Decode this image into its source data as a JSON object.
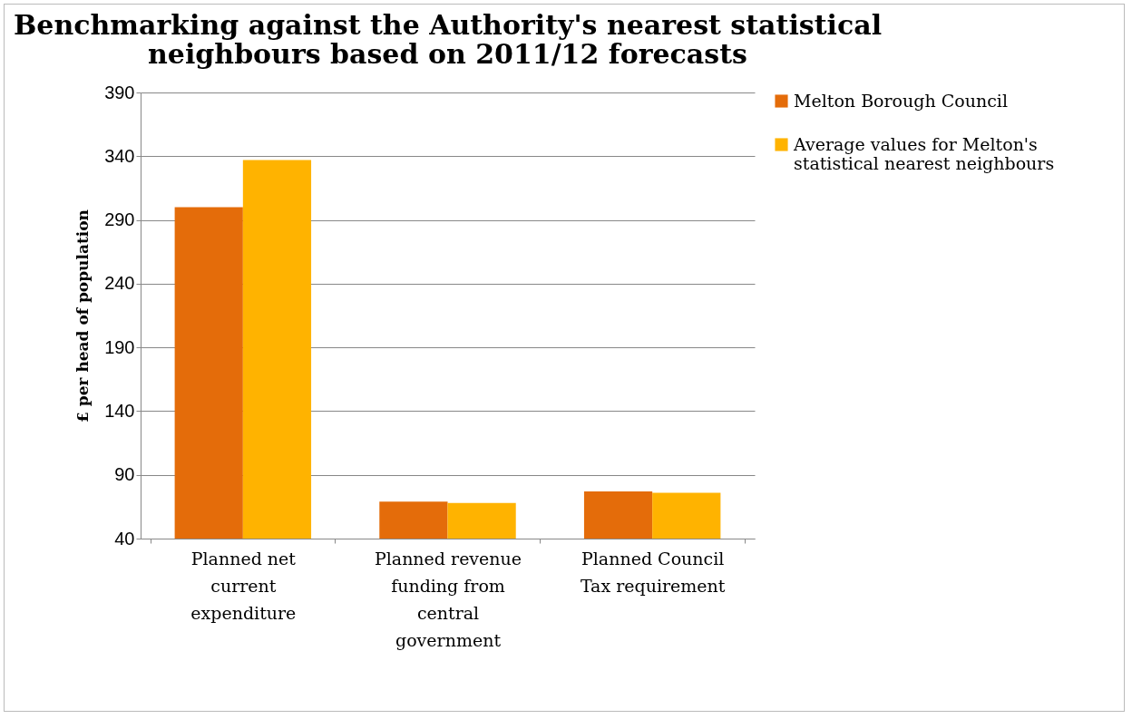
{
  "chart_data": {
    "type": "bar",
    "title": "Benchmarking against the Authority's nearest statistical neighbours based on 2011/12 forecasts",
    "ylabel": "£ per head of population",
    "categories": [
      "Planned net current expenditure",
      "Planned revenue funding from central government",
      "Planned Council Tax requirement"
    ],
    "series": [
      {
        "name": "Melton Borough Council",
        "color": "#e46c0a",
        "values": [
          300,
          69,
          77
        ]
      },
      {
        "name": "Average values for Melton's statistical nearest neighbours",
        "color": "#ffb300",
        "values": [
          337,
          68,
          76
        ]
      }
    ],
    "ylim": [
      40,
      390
    ],
    "yticks": [
      40,
      90,
      140,
      190,
      240,
      290,
      340,
      390
    ],
    "grid": "y",
    "legend": "right"
  }
}
